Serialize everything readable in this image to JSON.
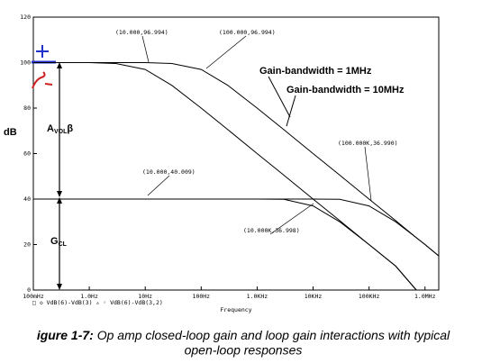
{
  "chart_data": {
    "type": "line",
    "y_label": "dB",
    "x_label": "Frequency",
    "legend": "□ ◇ VdB(6)-VdB(3)  ▵ ◦ VdB(6)-VdB(3,2)",
    "log_x": true,
    "xlim": [
      0.1,
      1760000
    ],
    "xticks": [
      {
        "value": 0.1,
        "label": "100mHz"
      },
      {
        "value": 1,
        "label": "1.0Hz"
      },
      {
        "value": 10,
        "label": "10Hz"
      },
      {
        "value": 100,
        "label": "100Hz"
      },
      {
        "value": 1000,
        "label": "1.0KHz"
      },
      {
        "value": 10000,
        "label": "10KHz"
      },
      {
        "value": 100000,
        "label": "100KHz"
      },
      {
        "value": 1000000,
        "label": "1.0MHz"
      }
    ],
    "ylim": [
      0,
      120
    ],
    "yticks": [
      0,
      20,
      40,
      60,
      80,
      100,
      120
    ],
    "x": [
      0.1,
      1,
      3,
      10,
      30,
      100,
      300,
      1000,
      3000,
      10000,
      30000,
      100000,
      300000,
      700000,
      1000000,
      1760000
    ],
    "series": [
      {
        "color": "#000000",
        "values": [
          100,
          100,
          99.6,
          97,
          90,
          80,
          70.5,
          60,
          50.5,
          40,
          30.5,
          20,
          10.5,
          0,
          null,
          null
        ]
      },
      {
        "color": "#000000",
        "values": [
          100,
          100,
          100,
          100,
          99.6,
          97,
          90,
          80,
          70.5,
          60,
          50.5,
          40,
          30.5,
          23,
          20,
          15
        ]
      },
      {
        "color": "#000000",
        "values": [
          40,
          40,
          40,
          40,
          40,
          40,
          40,
          40,
          39.9,
          37,
          30,
          20,
          10.5,
          0,
          null,
          null
        ]
      },
      {
        "color": "#000000",
        "values": [
          40,
          40,
          40,
          40,
          40,
          40,
          40,
          40,
          40,
          40,
          39.9,
          37,
          30,
          23,
          20,
          15
        ]
      }
    ],
    "annotations": [
      "(10.000,96.994)",
      "(100.000,96.994)",
      "(100.000K,36.990)",
      "(10.000,40.009)",
      "(10.000K,36.998)"
    ],
    "labels": [
      "Gain-bandwidth = 1MHz",
      "Gain-bandwidth = 10MHz"
    ],
    "avol": {
      "main": "A",
      "sub": "VOL",
      "suffix": "β"
    },
    "gcl": {
      "main": "G",
      "sub": "CL"
    },
    "caption": {
      "label": "igure 1-7:",
      "line1": "Op amp closed-loop gain and loop gain interactions with typical",
      "line2": "open-loop responses"
    }
  }
}
